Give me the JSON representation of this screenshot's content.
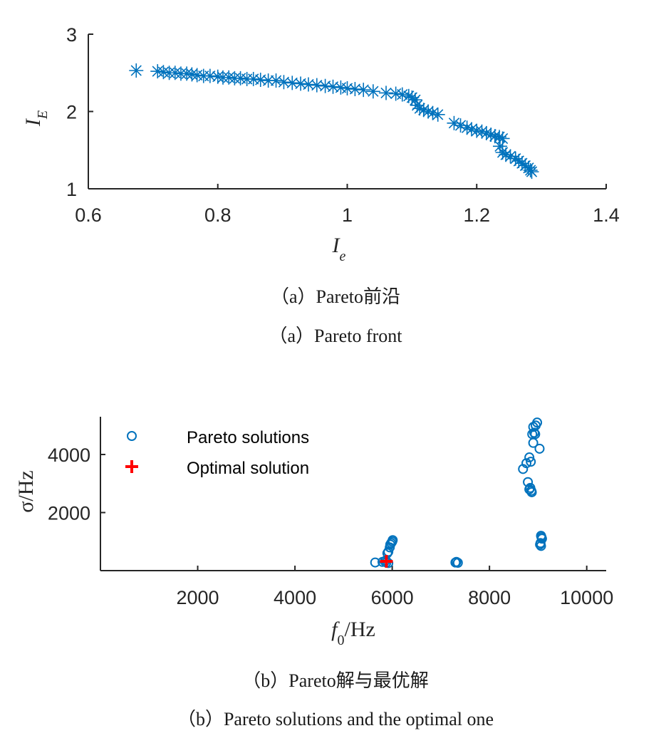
{
  "chart_data": [
    {
      "type": "scatter",
      "marker": "asterisk",
      "color": "#0072BD",
      "xlabel_main": "I",
      "xlabel_sub": "e",
      "ylabel_main": "I",
      "ylabel_sub": "E",
      "xlim": [
        0.6,
        1.4
      ],
      "ylim": [
        1,
        3
      ],
      "xticks": [
        0.6,
        0.8,
        1,
        1.2,
        1.4
      ],
      "xtick_labels": [
        "0.6",
        "0.8",
        "1",
        "1.2",
        "1.4"
      ],
      "yticks": [
        1,
        2,
        3
      ],
      "ytick_labels": [
        "1",
        "2",
        "3"
      ],
      "x": [
        0.674,
        0.707,
        0.716,
        0.725,
        0.734,
        0.743,
        0.752,
        0.76,
        0.768,
        0.778,
        0.788,
        0.8,
        0.808,
        0.817,
        0.826,
        0.835,
        0.845,
        0.855,
        0.866,
        0.878,
        0.89,
        0.902,
        0.915,
        0.928,
        0.94,
        0.953,
        0.966,
        0.978,
        0.99,
        1.0,
        1.012,
        1.025,
        1.04,
        1.06,
        1.075,
        1.085,
        1.095,
        1.1,
        1.105,
        1.108,
        1.112,
        1.118,
        1.125,
        1.132,
        1.14,
        1.165,
        1.175,
        1.185,
        1.192,
        1.2,
        1.208,
        1.215,
        1.222,
        1.228,
        1.235,
        1.24,
        1.236,
        1.24,
        1.245,
        1.252,
        1.26,
        1.265,
        1.27,
        1.275,
        1.28,
        1.283,
        1.285
      ],
      "y": [
        2.53,
        2.52,
        2.51,
        2.5,
        2.5,
        2.49,
        2.49,
        2.48,
        2.47,
        2.46,
        2.46,
        2.45,
        2.44,
        2.44,
        2.43,
        2.43,
        2.42,
        2.42,
        2.41,
        2.4,
        2.4,
        2.38,
        2.37,
        2.36,
        2.35,
        2.34,
        2.33,
        2.32,
        2.31,
        2.3,
        2.29,
        2.28,
        2.26,
        2.24,
        2.23,
        2.22,
        2.2,
        2.18,
        2.15,
        2.08,
        2.04,
        2.02,
        2.0,
        1.98,
        1.96,
        1.85,
        1.82,
        1.79,
        1.77,
        1.75,
        1.74,
        1.72,
        1.7,
        1.68,
        1.67,
        1.65,
        1.55,
        1.47,
        1.44,
        1.42,
        1.39,
        1.36,
        1.33,
        1.3,
        1.27,
        1.24,
        1.22
      ]
    },
    {
      "type": "scatter",
      "xlabel_main": "f",
      "xlabel_sub": "0",
      "xlabel_rest": "/Hz",
      "ylabel": "σ/Hz",
      "xlim": [
        0,
        10400
      ],
      "ylim": [
        0,
        5300
      ],
      "xticks": [
        2000,
        4000,
        6000,
        8000,
        10000
      ],
      "xtick_labels": [
        "2000",
        "4000",
        "6000",
        "8000",
        "10000"
      ],
      "yticks": [
        2000,
        4000
      ],
      "ytick_labels": [
        "2000",
        "4000"
      ],
      "legend_position": "top-left",
      "series": [
        {
          "name": "Pareto solutions",
          "marker": "circle",
          "color": "#0072BD",
          "x": [
            5650,
            5800,
            5850,
            5870,
            5900,
            5920,
            5950,
            5960,
            5980,
            6000,
            6010,
            5880,
            5920,
            7300,
            7320,
            7350,
            8690,
            8760,
            8790,
            8820,
            8840,
            8860,
            8870,
            8820,
            8850,
            8900,
            8880,
            8920,
            8950,
            8900,
            8940,
            8980,
            9030,
            9060,
            9070,
            9080,
            9050,
            9040,
            9060
          ],
          "y": [
            280,
            300,
            320,
            350,
            600,
            650,
            800,
            900,
            950,
            1000,
            1050,
            280,
            260,
            280,
            300,
            270,
            3500,
            3700,
            3050,
            2800,
            2850,
            2750,
            2700,
            3900,
            3750,
            4400,
            4700,
            4750,
            5000,
            4950,
            4700,
            5100,
            4200,
            1200,
            1150,
            1100,
            950,
            900,
            850
          ]
        },
        {
          "name": "Optimal solution",
          "marker": "plus",
          "color": "#FF0000",
          "x": [
            5880
          ],
          "y": [
            320
          ]
        }
      ]
    }
  ],
  "captions": {
    "a_cn": "（a）Pareto前沿",
    "a_en": "（a）Pareto front",
    "b_cn": "（b）Pareto解与最优解",
    "b_en": "（b）Pareto solutions and the optimal one"
  }
}
